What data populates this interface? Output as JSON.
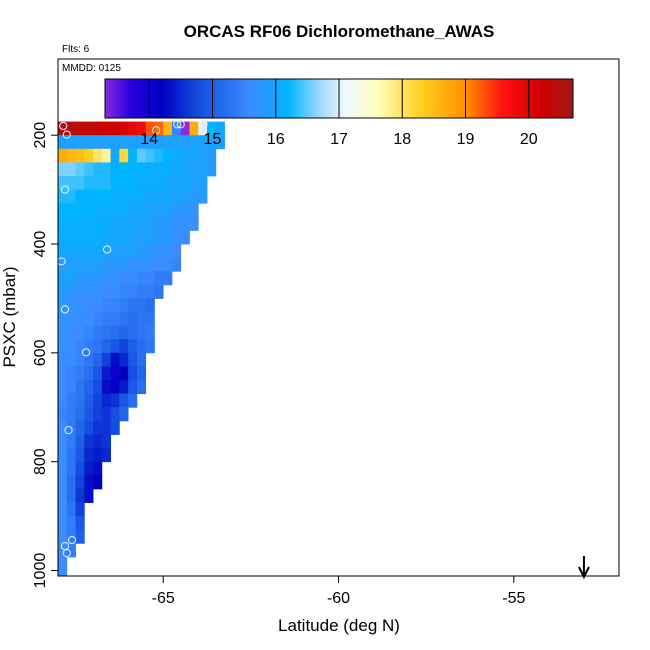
{
  "chart_data": {
    "type": "heatmap",
    "title": "ORCAS RF06 Dichloromethane_AWAS",
    "xlabel": "Latitude (deg N)",
    "ylabel": "PSXC (mbar)",
    "flts_note": "Flts: 6",
    "mmdd_note": "MMDD: 0125",
    "xlim": [
      -68.0,
      -52.0
    ],
    "ylim": [
      1010,
      60
    ],
    "xticks": [
      -65,
      -60,
      -55
    ],
    "xtick_labels": [
      "-65",
      "-60",
      "-55"
    ],
    "yticks": [
      200,
      400,
      600,
      800,
      1000
    ],
    "ytick_labels": [
      "200",
      "400",
      "600",
      "800",
      "1000"
    ],
    "colorbar": {
      "range": [
        13.3,
        20.7
      ],
      "ticks": [
        14,
        15,
        16,
        17,
        18,
        19,
        20
      ],
      "tick_labels": [
        "14",
        "15",
        "16",
        "17",
        "18",
        "19",
        "20"
      ],
      "stops": [
        {
          "v": 13.3,
          "c": "#8a2be2"
        },
        {
          "v": 13.7,
          "c": "#2a00e0"
        },
        {
          "v": 14.2,
          "c": "#0000c0"
        },
        {
          "v": 14.8,
          "c": "#1450e0"
        },
        {
          "v": 15.6,
          "c": "#3c8cff"
        },
        {
          "v": 16.2,
          "c": "#00b4ff"
        },
        {
          "v": 16.7,
          "c": "#9fd8ff"
        },
        {
          "v": 17.1,
          "c": "#f0f8ff"
        },
        {
          "v": 17.6,
          "c": "#ffffc0"
        },
        {
          "v": 18.3,
          "c": "#ffd020"
        },
        {
          "v": 19.0,
          "c": "#ff9000"
        },
        {
          "v": 19.6,
          "c": "#ff1010"
        },
        {
          "v": 20.2,
          "c": "#d00000"
        },
        {
          "v": 20.7,
          "c": "#a01818"
        }
      ]
    },
    "cell_size": {
      "lat": 0.25,
      "p": 25
    },
    "grid_start_lat": -68.0,
    "rows": [
      {
        "p": 187.5,
        "values": [
          20.5,
          20.5,
          20.4,
          20.3,
          20.3,
          20.2,
          20.2,
          20.1,
          19.9,
          19.8,
          19.3,
          19.2,
          18.6,
          15.5,
          13.3,
          18.7,
          17.0,
          16.2,
          16.0
        ]
      },
      {
        "p": 212.5,
        "values": [
          15.9,
          15.9,
          15.9,
          15.9,
          15.9,
          15.9,
          15.9,
          15.9,
          15.9,
          15.9,
          15.9,
          15.9,
          15.9,
          15.9,
          15.9,
          15.9,
          15.9,
          15.9,
          15.9
        ]
      },
      {
        "p": 237.5,
        "values": [
          18.7,
          18.6,
          18.5,
          18.3,
          18.0,
          17.8,
          16.0,
          18.2,
          16.2,
          16.5,
          16.4,
          16.3,
          16.2,
          16.1,
          16.0,
          16.0,
          15.9,
          15.8
        ]
      },
      {
        "p": 262.5,
        "values": [
          16.6,
          16.6,
          16.5,
          16.4,
          16.3,
          16.3,
          16.2,
          16.2,
          16.2,
          16.2,
          16.1,
          16.1,
          16.1,
          16.0,
          16.0,
          15.9,
          15.9,
          15.8
        ]
      },
      {
        "p": 287.5,
        "values": [
          16.4,
          16.4,
          16.4,
          16.3,
          16.3,
          16.3,
          16.2,
          16.2,
          16.2,
          16.1,
          16.1,
          16.1,
          16.0,
          16.0,
          16.0,
          15.9,
          15.9
        ]
      },
      {
        "p": 312.5,
        "values": [
          16.3,
          16.3,
          16.2,
          16.2,
          16.2,
          16.2,
          16.1,
          16.1,
          16.1,
          16.1,
          16.0,
          16.0,
          16.0,
          15.9,
          15.9,
          15.8,
          15.8
        ]
      },
      {
        "p": 337.5,
        "values": [
          16.2,
          16.2,
          16.2,
          16.2,
          16.1,
          16.1,
          16.1,
          16.1,
          16.0,
          16.0,
          15.9,
          15.9,
          15.9,
          15.8,
          15.8,
          15.7
        ]
      },
      {
        "p": 362.5,
        "values": [
          16.2,
          16.1,
          16.1,
          16.1,
          16.1,
          16.1,
          16.0,
          16.0,
          16.0,
          15.9,
          15.9,
          15.8,
          15.8,
          15.7,
          15.7,
          15.6
        ]
      },
      {
        "p": 387.5,
        "values": [
          16.1,
          16.1,
          16.1,
          16.1,
          16.1,
          16.0,
          16.0,
          16.0,
          15.9,
          15.9,
          15.9,
          15.8,
          15.8,
          15.7,
          15.6
        ]
      },
      {
        "p": 412.5,
        "values": [
          16.0,
          16.0,
          16.0,
          16.0,
          16.0,
          16.0,
          15.9,
          15.9,
          15.9,
          15.8,
          15.8,
          15.7,
          15.7,
          15.6
        ]
      },
      {
        "p": 437.5,
        "values": [
          15.9,
          15.9,
          15.9,
          15.9,
          15.9,
          15.8,
          15.8,
          15.8,
          15.7,
          15.7,
          15.7,
          15.6,
          15.6,
          15.5
        ]
      },
      {
        "p": 462.5,
        "values": [
          15.9,
          15.9,
          15.8,
          15.8,
          15.8,
          15.7,
          15.7,
          15.6,
          15.6,
          15.5,
          15.5,
          15.4,
          15.4
        ]
      },
      {
        "p": 487.5,
        "values": [
          15.8,
          15.8,
          15.7,
          15.7,
          15.7,
          15.6,
          15.6,
          15.5,
          15.5,
          15.4,
          15.4,
          15.3
        ]
      },
      {
        "p": 512.5,
        "values": [
          15.8,
          15.7,
          15.7,
          15.6,
          15.6,
          15.5,
          15.5,
          15.4,
          15.3,
          15.3,
          15.2
        ]
      },
      {
        "p": 537.5,
        "values": [
          15.7,
          15.7,
          15.6,
          15.6,
          15.5,
          15.4,
          15.4,
          15.3,
          15.2,
          15.3,
          15.3
        ]
      },
      {
        "p": 562.5,
        "values": [
          15.7,
          15.6,
          15.6,
          15.5,
          15.4,
          15.3,
          15.2,
          15.1,
          15.2,
          15.3,
          15.4
        ]
      },
      {
        "p": 587.5,
        "values": [
          15.7,
          15.6,
          15.5,
          15.4,
          15.3,
          15.1,
          14.9,
          14.7,
          15.0,
          15.2,
          15.3
        ]
      },
      {
        "p": 612.5,
        "values": [
          15.6,
          15.6,
          15.5,
          15.3,
          15.1,
          14.7,
          14.3,
          14.5,
          14.9,
          15.2
        ]
      },
      {
        "p": 637.5,
        "values": [
          15.6,
          15.5,
          15.4,
          15.2,
          14.9,
          14.4,
          14.0,
          14.2,
          14.8,
          15.1
        ]
      },
      {
        "p": 662.5,
        "values": [
          15.6,
          15.5,
          15.3,
          15.1,
          14.8,
          14.3,
          14.1,
          14.4,
          14.9,
          15.2
        ]
      },
      {
        "p": 687.5,
        "values": [
          15.6,
          15.4,
          15.3,
          15.0,
          14.7,
          14.5,
          14.6,
          14.9,
          15.2
        ]
      },
      {
        "p": 712.5,
        "values": [
          15.5,
          15.4,
          15.2,
          14.9,
          14.7,
          14.6,
          14.8,
          15.1
        ]
      },
      {
        "p": 737.5,
        "values": [
          15.6,
          15.4,
          15.1,
          14.8,
          14.6,
          14.6,
          14.8
        ]
      },
      {
        "p": 762.5,
        "values": [
          15.6,
          15.4,
          15.0,
          14.6,
          14.5,
          14.6
        ]
      },
      {
        "p": 787.5,
        "values": [
          15.6,
          15.3,
          14.9,
          14.5,
          14.4,
          14.5
        ]
      },
      {
        "p": 812.5,
        "values": [
          15.6,
          15.3,
          14.8,
          14.4,
          14.3
        ]
      },
      {
        "p": 837.5,
        "values": [
          15.6,
          15.2,
          14.7,
          14.3,
          14.2
        ]
      },
      {
        "p": 862.5,
        "values": [
          15.6,
          15.2,
          14.6,
          14.3
        ]
      },
      {
        "p": 887.5,
        "values": [
          15.6,
          15.3,
          14.7
        ]
      },
      {
        "p": 912.5,
        "values": [
          15.6,
          15.4,
          14.9
        ]
      },
      {
        "p": 937.5,
        "values": [
          15.6,
          15.4,
          15.0
        ]
      },
      {
        "p": 962.5,
        "values": [
          15.6,
          15.4
        ]
      },
      {
        "p": 987.5,
        "values": [
          15.6
        ]
      },
      {
        "p": 1010.0,
        "values": [
          15.6
        ]
      }
    ],
    "points": [
      {
        "lat": -67.85,
        "p": 183
      },
      {
        "lat": -67.75,
        "p": 199
      },
      {
        "lat": -65.2,
        "p": 191
      },
      {
        "lat": -64.6,
        "p": 180
      },
      {
        "lat": -64.5,
        "p": 180
      },
      {
        "lat": -63.85,
        "p": 180
      },
      {
        "lat": -67.8,
        "p": 300
      },
      {
        "lat": -66.6,
        "p": 410
      },
      {
        "lat": -67.9,
        "p": 432
      },
      {
        "lat": -67.8,
        "p": 520
      },
      {
        "lat": -67.2,
        "p": 599
      },
      {
        "lat": -67.7,
        "p": 742
      },
      {
        "lat": -67.6,
        "p": 944
      },
      {
        "lat": -67.8,
        "p": 955
      },
      {
        "lat": -67.75,
        "p": 968
      }
    ],
    "arrow_lat": -53.0
  }
}
